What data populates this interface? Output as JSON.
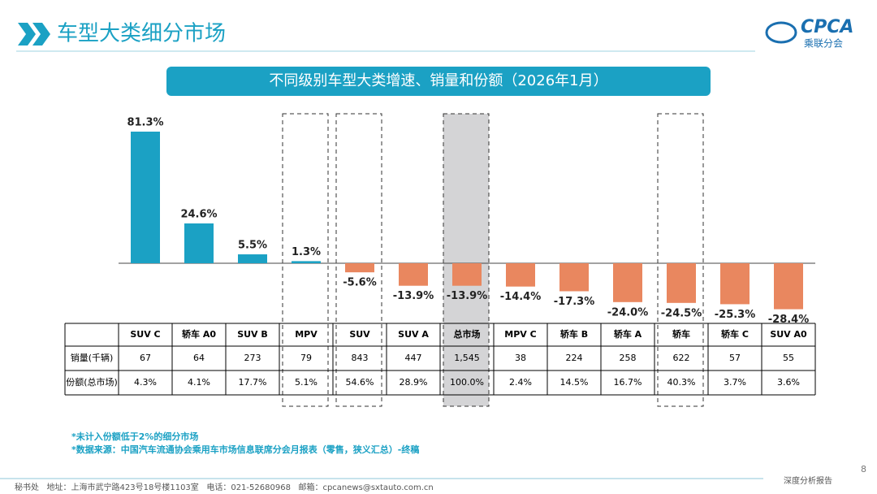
{
  "header": {
    "title": "车型大类细分市场",
    "logo": "CPCA",
    "logo_sub": "乘联分会"
  },
  "chart_data": {
    "type": "bar",
    "title": "不同级别车型大类增速、销量和份额（2026年1月）",
    "categories": [
      "SUV C",
      "轿车 A0",
      "SUV B",
      "MPV",
      "SUV",
      "SUV A",
      "总市场",
      "MPV C",
      "轿车 B",
      "轿车 A",
      "轿车",
      "轿车 C",
      "SUV A0"
    ],
    "values": [
      81.3,
      24.6,
      5.5,
      1.3,
      -5.6,
      -13.9,
      -13.9,
      -14.4,
      -17.3,
      -24.0,
      -24.5,
      -25.3,
      -28.4
    ],
    "value_labels": [
      "81.3%",
      "24.6%",
      "5.5%",
      "1.3%",
      "-5.6%",
      "-13.9%",
      "-13.9%",
      "-14.4%",
      "-17.3%",
      "-24.0%",
      "-24.5%",
      "-25.3%",
      "-28.4%"
    ],
    "color_positive": "#1ba1c4",
    "color_negative": "#e9875f"
  },
  "table": {
    "rows": [
      {
        "label": "销量(千辆)",
        "cells": [
          "67",
          "64",
          "273",
          "79",
          "843",
          "447",
          "1,545",
          "38",
          "224",
          "258",
          "622",
          "57",
          "55"
        ]
      },
      {
        "label": "份额(总市场)",
        "cells": [
          "4.3%",
          "4.1%",
          "17.7%",
          "5.1%",
          "54.6%",
          "28.9%",
          "100.0%",
          "2.4%",
          "14.5%",
          "16.7%",
          "40.3%",
          "3.7%",
          "3.6%"
        ]
      }
    ]
  },
  "notes": [
    "*未计入份额低于2%的细分市场",
    "*数据来源：中国汽车流通协会乘用车市场信息联席分会月报表（零售，狭义汇总）-终稿"
  ],
  "footer": {
    "address": "秘书处   地址：上海市武宁路423号18号楼1103室   电话：021-52680968   邮箱：cpcanews@sxtauto.com.cn",
    "report": "深度分析报告",
    "page": "8"
  }
}
